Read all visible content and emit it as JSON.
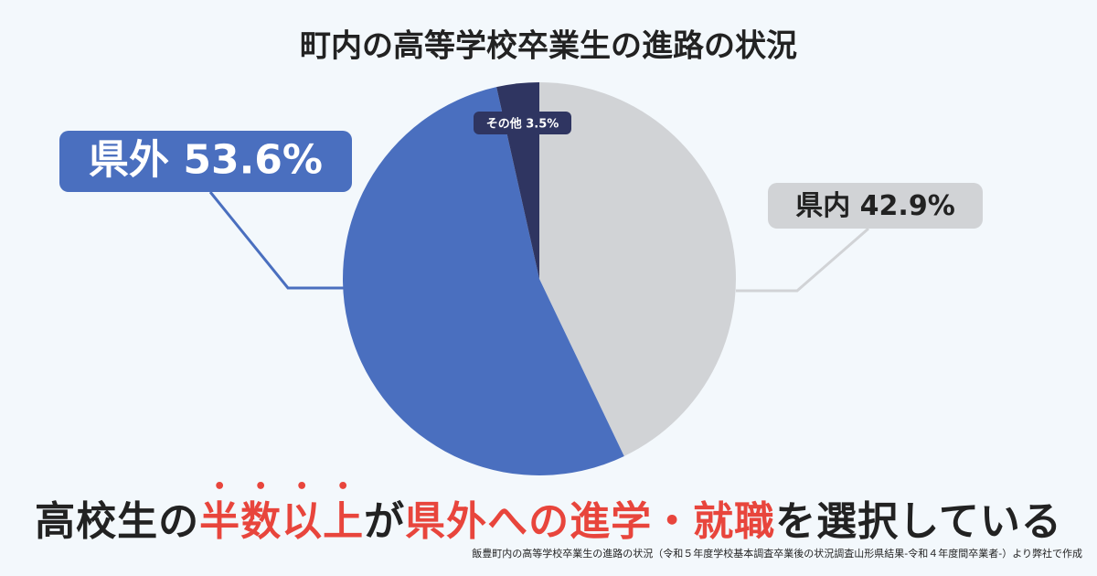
{
  "chart_data": {
    "type": "pie",
    "title": "町内の高等学校卒業生の進路の状況",
    "categories": [
      "県内",
      "県外",
      "その他"
    ],
    "values": [
      42.9,
      53.6,
      3.5
    ],
    "value_labels": [
      "42.9%",
      "53.6%",
      "3.5%"
    ],
    "colors": [
      "#d1d3d6",
      "#4a6fbf",
      "#2f3561"
    ],
    "headline": [
      {
        "text": "高校生の",
        "highlight": false,
        "dots": false
      },
      {
        "text": "半数以上",
        "highlight": true,
        "dots": true
      },
      {
        "text": "が",
        "highlight": false,
        "dots": false
      },
      {
        "text": "県外への進学・就職",
        "highlight": true,
        "dots": false
      },
      {
        "text": "を選択している",
        "highlight": false,
        "dots": false
      }
    ],
    "source": "飯豊町内の高等学校卒業生の進路の状況（令和５年度学校基本調査卒業後の状況調査山形県結果-令和４年度間卒業者-）より弊社で作成"
  }
}
